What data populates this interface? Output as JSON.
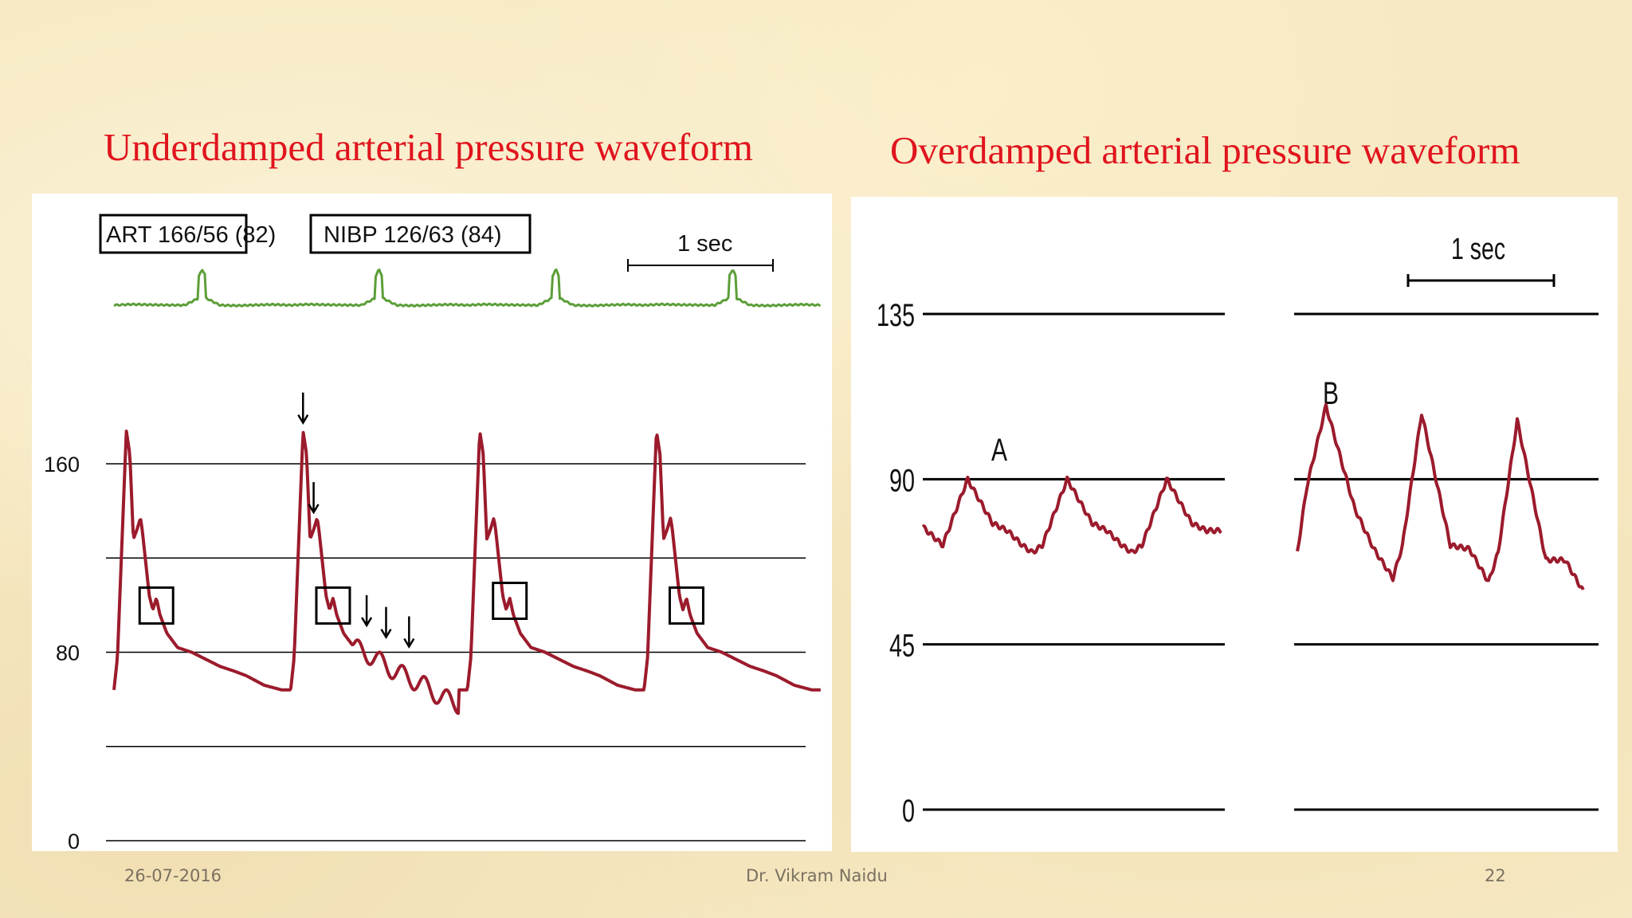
{
  "slide": {
    "title_left": "Underdamped arterial pressure waveform",
    "title_right": "Overdamped arterial pressure waveform",
    "footer_date": "26-07-2016",
    "footer_author": "Dr. Vikram Naidu",
    "footer_page": "22"
  },
  "colors": {
    "title": "#e0141d",
    "pressure_trace": "#9b1b2c",
    "ecg_trace": "#5c9e38",
    "gridline": "#000000",
    "panel_background": "#ffffff",
    "slide_background": "#f6e9c4"
  },
  "chart_data": [
    {
      "type": "line",
      "title": "",
      "monitor_labels": [
        "ART 166/56 (82)",
        "NIBP 126/63 (84)"
      ],
      "time_scale_label": "1 sec",
      "ylim": [
        0,
        200
      ],
      "y_ticks": [
        0,
        40,
        80,
        120,
        160
      ],
      "y_tick_labels": [
        "0",
        "",
        "80",
        "",
        "160"
      ],
      "grid": true,
      "series": [
        {
          "role": "ecg",
          "x": [
            0,
            0.1,
            0.2,
            0.3,
            0.4,
            0.5,
            0.6,
            0.7,
            0.8,
            0.9,
            1.0
          ],
          "values": [
            0,
            0.1,
            0.05,
            0.02,
            0,
            1,
            0,
            -0.05,
            0.02,
            0.08,
            0
          ]
        },
        {
          "role": "arterial_pressure",
          "x": [
            0,
            0.02,
            0.07,
            0.09,
            0.11,
            0.13,
            0.15,
            0.16,
            0.18,
            0.2,
            0.22,
            0.24,
            0.26,
            0.3,
            0.36,
            0.44,
            0.52,
            0.6,
            0.68,
            0.75,
            0.8,
            0.85,
            0.9,
            0.95,
            1.0
          ],
          "values": [
            64,
            78,
            174,
            164,
            128,
            132,
            137,
            132,
            118,
            104,
            98,
            103,
            96,
            88,
            82,
            80,
            77,
            74,
            72,
            70,
            68,
            66,
            65,
            64,
            64
          ],
          "beat_starts": [
            0.0,
            1.0,
            2.0,
            3.0
          ],
          "beat_length": 1.0
        }
      ],
      "annotations": {
        "resonance_arrows_beat2": [
          {
            "x": 1.07,
            "value": 174
          },
          {
            "x": 1.13,
            "value": 136
          },
          {
            "x": 1.43,
            "value": 88
          },
          {
            "x": 1.54,
            "value": 83
          },
          {
            "x": 1.67,
            "value": 79
          }
        ],
        "boxed_notch_regions": [
          {
            "x_center": 0.24,
            "value_center": 100
          },
          {
            "x_center": 1.24,
            "value_center": 100
          },
          {
            "x_center": 2.24,
            "value_center": 102
          },
          {
            "x_center": 3.24,
            "value_center": 100
          }
        ]
      }
    },
    {
      "type": "line",
      "title": "",
      "time_scale_label": "1 sec",
      "ylim": [
        0,
        160
      ],
      "y_ticks": [
        0,
        45,
        90,
        135
      ],
      "y_tick_labels": [
        "0",
        "45",
        "90",
        "135"
      ],
      "grid": true,
      "panels": [
        {
          "label": "A",
          "x": [
            0,
            0.2,
            0.45,
            0.7,
            0.85,
            1.0,
            1.1,
            1.2,
            1.45,
            1.7,
            1.85,
            2.0,
            2.1,
            2.2,
            2.45,
            2.7,
            2.85,
            3.0
          ],
          "values": [
            77,
            72,
            90,
            78,
            76,
            72,
            70,
            72,
            90,
            78,
            76,
            72,
            70,
            72,
            90,
            78,
            76,
            76
          ]
        },
        {
          "label": "B",
          "x": [
            0,
            0.1,
            0.3,
            0.6,
            0.8,
            1.0,
            1.1,
            1.3,
            1.6,
            1.8,
            2.0,
            2.1,
            2.3,
            2.6,
            2.8,
            3.0
          ],
          "values": [
            70,
            88,
            110,
            82,
            71,
            63,
            72,
            108,
            72,
            71,
            62,
            70,
            106,
            68,
            68,
            59
          ]
        }
      ]
    }
  ]
}
